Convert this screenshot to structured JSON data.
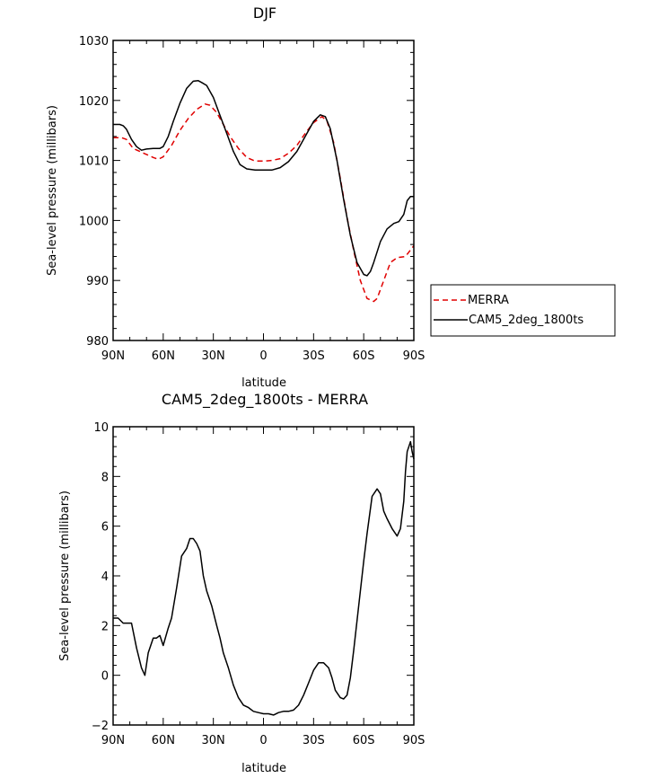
{
  "chart_data": [
    {
      "type": "line",
      "title": "DJF",
      "xlabel": "latitude",
      "ylabel": "Sea-level pressure (millibars)",
      "xlim": [
        90,
        -90
      ],
      "ylim": [
        980,
        1030
      ],
      "xticks": [
        90,
        60,
        30,
        0,
        -30,
        -60,
        -90
      ],
      "xtick_labels": [
        "90N",
        "60N",
        "30N",
        "0",
        "30S",
        "60S",
        "90S"
      ],
      "yticks": [
        980,
        990,
        1000,
        1010,
        1020,
        1030
      ],
      "ytick_labels": [
        "980",
        "990",
        "1000",
        "1010",
        "1020",
        "1030"
      ],
      "legend": "right",
      "series": [
        {
          "name": "MERRA",
          "color": "#e00000",
          "dash": "dashed",
          "x": [
            90,
            85,
            82,
            78,
            74,
            70,
            66,
            63,
            60,
            55,
            50,
            45,
            40,
            35,
            32,
            28,
            24,
            20,
            15,
            10,
            5,
            0,
            -5,
            -10,
            -15,
            -20,
            -25,
            -30,
            -35,
            -38,
            -42,
            -46,
            -50,
            -54,
            -58,
            -62,
            -66,
            -68,
            -72,
            -76,
            -80,
            -85,
            -90
          ],
          "values": [
            1013.8,
            1013.8,
            1013.5,
            1012,
            1011.5,
            1011,
            1010.5,
            1010.2,
            1010.6,
            1012.5,
            1015,
            1017,
            1018.5,
            1019.4,
            1019.2,
            1018,
            1016,
            1014,
            1012,
            1010.5,
            1009.9,
            1009.9,
            1010,
            1010.3,
            1011.2,
            1012.5,
            1014.5,
            1016.3,
            1017.3,
            1016.6,
            1013,
            1007,
            1000.5,
            995,
            990,
            987,
            986.5,
            987,
            990,
            993,
            993.8,
            994,
            995.8
          ]
        },
        {
          "name": "CAM5_2deg_1800ts",
          "color": "#000000",
          "dash": "solid",
          "x": [
            90,
            86,
            84,
            82,
            79,
            76,
            73,
            70,
            66,
            62,
            60,
            57,
            54,
            50,
            46,
            42,
            39,
            37,
            34,
            30,
            26,
            22,
            18,
            14,
            10,
            5,
            0,
            -5,
            -10,
            -15,
            -20,
            -25,
            -30,
            -34,
            -37,
            -40,
            -44,
            -48,
            -52,
            -56,
            -60,
            -62,
            -64,
            -66,
            -70,
            -74,
            -78,
            -81,
            -84,
            -86,
            -88,
            -90
          ],
          "values": [
            1016,
            1016,
            1015.8,
            1015.2,
            1013.5,
            1012.3,
            1011.7,
            1011.9,
            1012,
            1012,
            1012.3,
            1014,
            1016.5,
            1019.5,
            1022,
            1023.2,
            1023.3,
            1023,
            1022.5,
            1020.5,
            1017.5,
            1014.5,
            1011.5,
            1009.3,
            1008.6,
            1008.4,
            1008.4,
            1008.4,
            1008.8,
            1009.8,
            1011.5,
            1014,
            1016.5,
            1017.6,
            1017.3,
            1015.3,
            1010,
            1003.5,
            997.5,
            993,
            991,
            990.8,
            991.5,
            993,
            996.5,
            998.6,
            999.5,
            999.8,
            1001,
            1003.3,
            1004,
            1004
          ]
        }
      ]
    },
    {
      "type": "line",
      "title": "CAM5_2deg_1800ts - MERRA",
      "xlabel": "latitude",
      "ylabel": "Sea-level pressure (millibars)",
      "xlim": [
        90,
        -90
      ],
      "ylim": [
        -2,
        10
      ],
      "xticks": [
        90,
        60,
        30,
        0,
        -30,
        -60,
        -90
      ],
      "xtick_labels": [
        "90N",
        "60N",
        "30N",
        "0",
        "30S",
        "60S",
        "90S"
      ],
      "yticks": [
        -2,
        0,
        2,
        4,
        6,
        8,
        10
      ],
      "ytick_labels": [
        "−2",
        "0",
        "2",
        "4",
        "6",
        "8",
        "10"
      ],
      "series": [
        {
          "color": "#000000",
          "dash": "solid",
          "x": [
            90,
            87,
            84,
            82,
            79,
            76,
            73,
            71,
            69,
            66,
            64,
            62,
            60,
            57,
            55,
            52,
            49,
            46,
            44,
            42,
            40,
            38,
            36,
            34,
            31,
            28,
            26,
            24,
            21,
            18,
            15,
            12,
            9,
            6,
            3,
            0,
            -3,
            -6,
            -9,
            -12,
            -15,
            -18,
            -21,
            -24,
            -27,
            -30,
            -33,
            -36,
            -39,
            -41,
            -43,
            -46,
            -48,
            -50,
            -52,
            -54,
            -57,
            -60,
            -62,
            -65,
            -68,
            -70,
            -72,
            -74,
            -77,
            -80,
            -82,
            -84,
            -85,
            -86,
            -88,
            -89,
            -90
          ],
          "values": [
            2.3,
            2.3,
            2.1,
            2.1,
            2.1,
            1.1,
            0.3,
            0,
            0.9,
            1.5,
            1.5,
            1.6,
            1.2,
            1.9,
            2.3,
            3.5,
            4.8,
            5.1,
            5.5,
            5.5,
            5.3,
            5,
            4,
            3.4,
            2.8,
            2,
            1.5,
            0.9,
            0.3,
            -0.4,
            -0.9,
            -1.2,
            -1.3,
            -1.45,
            -1.5,
            -1.55,
            -1.55,
            -1.6,
            -1.5,
            -1.45,
            -1.45,
            -1.4,
            -1.2,
            -0.8,
            -0.3,
            0.2,
            0.5,
            0.5,
            0.3,
            -0.1,
            -0.6,
            -0.9,
            -0.95,
            -0.8,
            -0.1,
            1,
            2.8,
            4.6,
            5.7,
            7.2,
            7.5,
            7.3,
            6.6,
            6.3,
            5.9,
            5.6,
            5.9,
            7,
            8.2,
            9,
            9.4,
            9,
            8.7
          ]
        }
      ]
    }
  ]
}
